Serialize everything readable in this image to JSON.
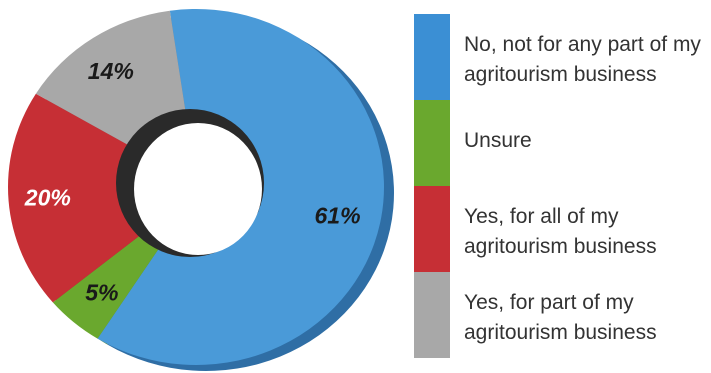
{
  "chart_data": {
    "type": "pie",
    "categories": [
      "No, not for any part of my agritourism business",
      "Unsure",
      "Yes, for all of my agritourism business",
      "Yes, for part of my agritourism business"
    ],
    "values": [
      61,
      5,
      20,
      14
    ],
    "value_labels": [
      "61%",
      "5%",
      "20%",
      "14%"
    ],
    "colors": [
      "#4a9ad8",
      "#6aa82e",
      "#c62f35",
      "#a8a8a8"
    ],
    "donut": true,
    "legend_position": "right"
  },
  "legend": {
    "items": [
      {
        "label": "No, not for any part of my agritourism business",
        "color": "#4a9ad8"
      },
      {
        "label": "Unsure",
        "color": "#6aa82e"
      },
      {
        "label": "Yes, for all of my agritourism business",
        "color": "#c62f35"
      },
      {
        "label": "Yes, for part of my agritourism business",
        "color": "#a8a8a8"
      }
    ]
  }
}
